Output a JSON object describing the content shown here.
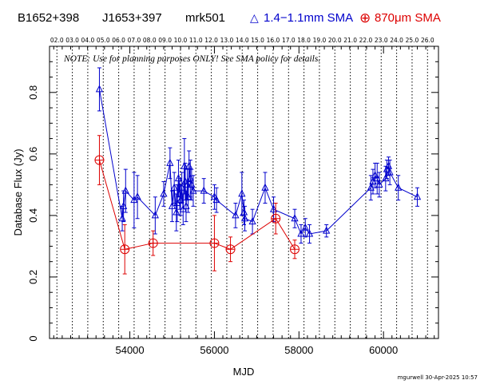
{
  "header": {
    "source1": "B1652+398",
    "source2": "J1653+397",
    "source3": "mrk501",
    "legend_blue_symbol": "△",
    "legend_blue_label": "1.4−1.1mm SMA",
    "legend_red_symbol": "⊕",
    "legend_red_label": "870μm SMA",
    "blue_color": "#0000cc",
    "red_color": "#dd0000"
  },
  "note": "NOTE: Use for planning purposes ONLY!  See SMA policy for details.",
  "footer": "mgurwell 30-Apr-2025 10:57",
  "chart_data": {
    "type": "scatter",
    "title": "",
    "xlabel": "MJD",
    "ylabel": "Database Flux (Jy)",
    "xlim": [
      52100,
      61300
    ],
    "ylim": [
      0,
      0.95
    ],
    "x_ticks": [
      54000,
      56000,
      58000,
      60000
    ],
    "y_ticks": [
      0,
      0.2,
      0.4,
      0.6,
      0.8
    ],
    "top_axis_labels": [
      "02.0",
      "03.0",
      "04.0",
      "05.0",
      "06.0",
      "07.0",
      "08.0",
      "09.0",
      "10.0",
      "11.0",
      "12.0",
      "13.0",
      "14.0",
      "15.0",
      "16.0",
      "17.0",
      "18.0",
      "19.0",
      "20.0",
      "21.0",
      "22.0",
      "23.0",
      "24.0",
      "25.0",
      "26.0"
    ],
    "top_axis_mjd": [
      52275,
      52640,
      53005,
      53371,
      53736,
      54101,
      54466,
      54832,
      55197,
      55562,
      55927,
      56293,
      56658,
      57023,
      57388,
      57754,
      58119,
      58484,
      58849,
      59215,
      59580,
      59945,
      60310,
      60676,
      61041
    ],
    "series": [
      {
        "name": "1.4−1.1mm SMA",
        "color": "#0000cc",
        "marker": "triangle",
        "points": [
          {
            "x": 53280,
            "y": 0.81,
            "err": 0.07
          },
          {
            "x": 53820,
            "y": 0.39,
            "err": 0.04
          },
          {
            "x": 53850,
            "y": 0.43,
            "err": 0.05
          },
          {
            "x": 53900,
            "y": 0.48,
            "err": 0.07
          },
          {
            "x": 54100,
            "y": 0.45,
            "err": 0.09
          },
          {
            "x": 54180,
            "y": 0.46,
            "err": 0.07
          },
          {
            "x": 54600,
            "y": 0.4,
            "err": 0.06
          },
          {
            "x": 54800,
            "y": 0.47,
            "err": 0.04
          },
          {
            "x": 54950,
            "y": 0.57,
            "err": 0.05
          },
          {
            "x": 55000,
            "y": 0.43,
            "err": 0.05
          },
          {
            "x": 55050,
            "y": 0.49,
            "err": 0.05
          },
          {
            "x": 55100,
            "y": 0.41,
            "err": 0.06
          },
          {
            "x": 55120,
            "y": 0.44,
            "err": 0.06
          },
          {
            "x": 55150,
            "y": 0.52,
            "err": 0.06
          },
          {
            "x": 55180,
            "y": 0.47,
            "err": 0.05
          },
          {
            "x": 55200,
            "y": 0.45,
            "err": 0.05
          },
          {
            "x": 55230,
            "y": 0.49,
            "err": 0.05
          },
          {
            "x": 55260,
            "y": 0.42,
            "err": 0.05
          },
          {
            "x": 55290,
            "y": 0.56,
            "err": 0.09
          },
          {
            "x": 55310,
            "y": 0.51,
            "err": 0.06
          },
          {
            "x": 55330,
            "y": 0.43,
            "err": 0.05
          },
          {
            "x": 55360,
            "y": 0.5,
            "err": 0.05
          },
          {
            "x": 55380,
            "y": 0.46,
            "err": 0.05
          },
          {
            "x": 55400,
            "y": 0.56,
            "err": 0.05
          },
          {
            "x": 55430,
            "y": 0.52,
            "err": 0.06
          },
          {
            "x": 55460,
            "y": 0.5,
            "err": 0.05
          },
          {
            "x": 55500,
            "y": 0.48,
            "err": 0.05
          },
          {
            "x": 55750,
            "y": 0.48,
            "err": 0.04
          },
          {
            "x": 56000,
            "y": 0.46,
            "err": 0.04
          },
          {
            "x": 56050,
            "y": 0.45,
            "err": 0.04
          },
          {
            "x": 56500,
            "y": 0.4,
            "err": 0.04
          },
          {
            "x": 56650,
            "y": 0.47,
            "err": 0.07
          },
          {
            "x": 56700,
            "y": 0.41,
            "err": 0.04
          },
          {
            "x": 56720,
            "y": 0.39,
            "err": 0.04
          },
          {
            "x": 56900,
            "y": 0.38,
            "err": 0.04
          },
          {
            "x": 57200,
            "y": 0.49,
            "err": 0.05
          },
          {
            "x": 57400,
            "y": 0.42,
            "err": 0.04
          },
          {
            "x": 57900,
            "y": 0.39,
            "err": 0.03
          },
          {
            "x": 58050,
            "y": 0.34,
            "err": 0.03
          },
          {
            "x": 58150,
            "y": 0.36,
            "err": 0.03
          },
          {
            "x": 58250,
            "y": 0.34,
            "err": 0.03
          },
          {
            "x": 58650,
            "y": 0.35,
            "err": 0.02
          },
          {
            "x": 59700,
            "y": 0.49,
            "err": 0.04
          },
          {
            "x": 59750,
            "y": 0.51,
            "err": 0.04
          },
          {
            "x": 59800,
            "y": 0.53,
            "err": 0.04
          },
          {
            "x": 59850,
            "y": 0.52,
            "err": 0.05
          },
          {
            "x": 59900,
            "y": 0.5,
            "err": 0.04
          },
          {
            "x": 60050,
            "y": 0.52,
            "err": 0.04
          },
          {
            "x": 60080,
            "y": 0.55,
            "err": 0.03
          },
          {
            "x": 60120,
            "y": 0.56,
            "err": 0.03
          },
          {
            "x": 60150,
            "y": 0.54,
            "err": 0.04
          },
          {
            "x": 60350,
            "y": 0.49,
            "err": 0.04
          },
          {
            "x": 60800,
            "y": 0.46,
            "err": 0.03
          }
        ]
      },
      {
        "name": "870μm SMA",
        "color": "#dd0000",
        "marker": "circle-plus",
        "points": [
          {
            "x": 53280,
            "y": 0.58,
            "err": 0.08
          },
          {
            "x": 53880,
            "y": 0.29,
            "err": 0.08
          },
          {
            "x": 54550,
            "y": 0.31,
            "err": 0.04
          },
          {
            "x": 56000,
            "y": 0.31,
            "err": 0.09
          },
          {
            "x": 56380,
            "y": 0.29,
            "err": 0.04
          },
          {
            "x": 57450,
            "y": 0.39,
            "err": 0.05
          },
          {
            "x": 57900,
            "y": 0.29,
            "err": 0.03
          }
        ]
      }
    ]
  }
}
